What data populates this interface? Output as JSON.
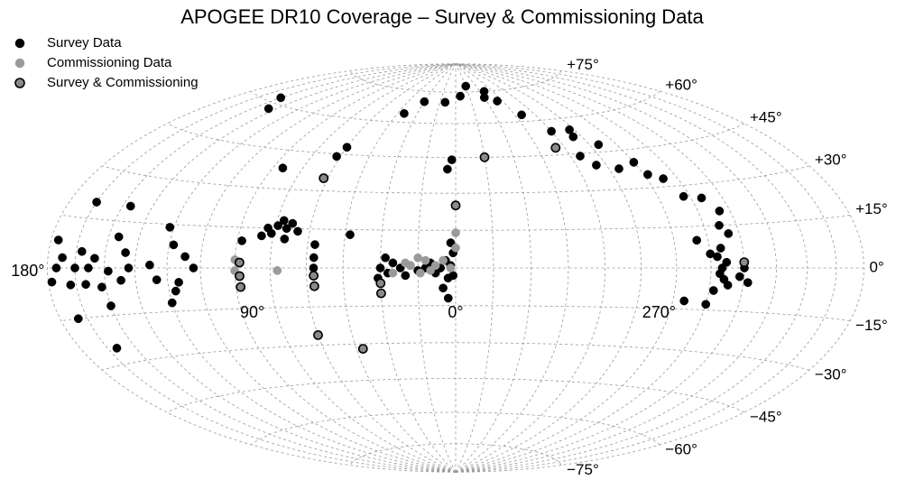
{
  "chart_data": {
    "type": "sky_map",
    "projection": "hammer-aitoff",
    "title": "APOGEE DR10 Coverage – Survey & Commissioning Data",
    "grid": true,
    "legend": "upper left",
    "ylim": [
      -90,
      90
    ],
    "xticks": [
      {
        "value": 180,
        "label": "180°"
      },
      {
        "value": 90,
        "label": "90°"
      },
      {
        "value": 0,
        "label": "0°"
      },
      {
        "value": 270,
        "label": "270°"
      }
    ],
    "yticks": [
      {
        "value": 75,
        "label": "+75°"
      },
      {
        "value": 60,
        "label": "+60°"
      },
      {
        "value": 45,
        "label": "+45°"
      },
      {
        "value": 30,
        "label": "+30°"
      },
      {
        "value": 15,
        "label": "+15°"
      },
      {
        "value": 0,
        "label": "0°"
      },
      {
        "value": -15,
        "label": "−15°"
      },
      {
        "value": -30,
        "label": "−30°"
      },
      {
        "value": -45,
        "label": "−45°"
      },
      {
        "value": -60,
        "label": "−60°"
      },
      {
        "value": -75,
        "label": "−75°"
      }
    ],
    "series": [
      {
        "name": "Survey Data",
        "color": "#000000",
        "edgecolor": "#000000",
        "x": [
          30,
          27,
          25,
          22,
          20,
          18,
          15,
          12,
          10,
          8,
          6,
          4,
          3,
          2,
          1,
          2,
          1,
          5,
          28,
          31,
          57,
          57,
          57,
          65,
          68,
          70,
          72,
          74,
          76,
          78,
          80,
          70,
          88,
          108,
          112,
          115,
          118,
          120,
          122,
          128,
          125,
          117,
          138,
          140,
          142,
          145,
          148,
          152,
          155,
          150,
          146,
          158,
          160,
          162,
          165,
          168,
          172,
          175,
          178,
          176,
          170,
          160,
          165,
          43,
          3,
          2,
          4,
          60,
          62,
          85,
          150,
          140,
          40,
          30,
          10,
          345,
          355,
          330,
          325,
          320,
          310,
          300,
          290,
          288,
          280,
          295,
          290,
          280,
          270,
          268,
          262,
          258,
          250,
          245,
          248,
          245,
          260,
          255,
          248,
          250,
          251,
          249,
          252,
          247,
          253,
          250,
          240,
          238,
          265,
          255,
          242
        ],
        "values": [
          0,
          -2,
          2,
          0,
          -3,
          1,
          -1,
          0,
          2,
          -2,
          0,
          3,
          -4,
          1,
          6,
          10,
          -3,
          -8,
          4,
          -4,
          9,
          4,
          0,
          14,
          17,
          15,
          18,
          16,
          13,
          15,
          12,
          11,
          10,
          0,
          4,
          -5,
          8,
          -12,
          14,
          1,
          -4,
          -8,
          0,
          5,
          -4,
          10,
          -1,
          -6,
          3,
          -12,
          20,
          0,
          -5,
          5,
          0,
          -5,
          3,
          0,
          -4,
          8,
          -15,
          -25,
          20,
          13,
          -12,
          44,
          40,
          48,
          44,
          38,
          62,
          58,
          64,
          70,
          70,
          78,
          73,
          72,
          75,
          70,
          63,
          55,
          52,
          55,
          48,
          44,
          40,
          38,
          40,
          35,
          33,
          26,
          25,
          20,
          15,
          12,
          10,
          5,
          2,
          0,
          -2,
          -4,
          4,
          -6,
          -8,
          7,
          0,
          -5,
          -12,
          -13,
          -3
        ]
      },
      {
        "name": "Commissioning Data",
        "color": "#9a9a9a",
        "edgecolor": "#9a9a9a",
        "x": [
          5,
          8,
          12,
          15,
          18,
          0,
          0,
          2,
          20,
          25,
          90,
          90,
          72,
          10,
          14
        ],
        "values": [
          3,
          1,
          3,
          4,
          1,
          8,
          14,
          0,
          2,
          -2,
          3,
          -1,
          -1,
          -1,
          -2
        ]
      },
      {
        "name": "Survey & Commissioning",
        "color": "#8a8a8a",
        "edgecolor": "#000000",
        "x": [
          0,
          345,
          305,
          62,
          57,
          57,
          88,
          88,
          88,
          30,
          30,
          60,
          42,
          240
        ],
        "values": [
          25,
          45,
          48,
          35,
          -3,
          -7,
          2,
          -3,
          -7,
          -6,
          -10,
          -26,
          -32,
          2
        ]
      }
    ]
  }
}
